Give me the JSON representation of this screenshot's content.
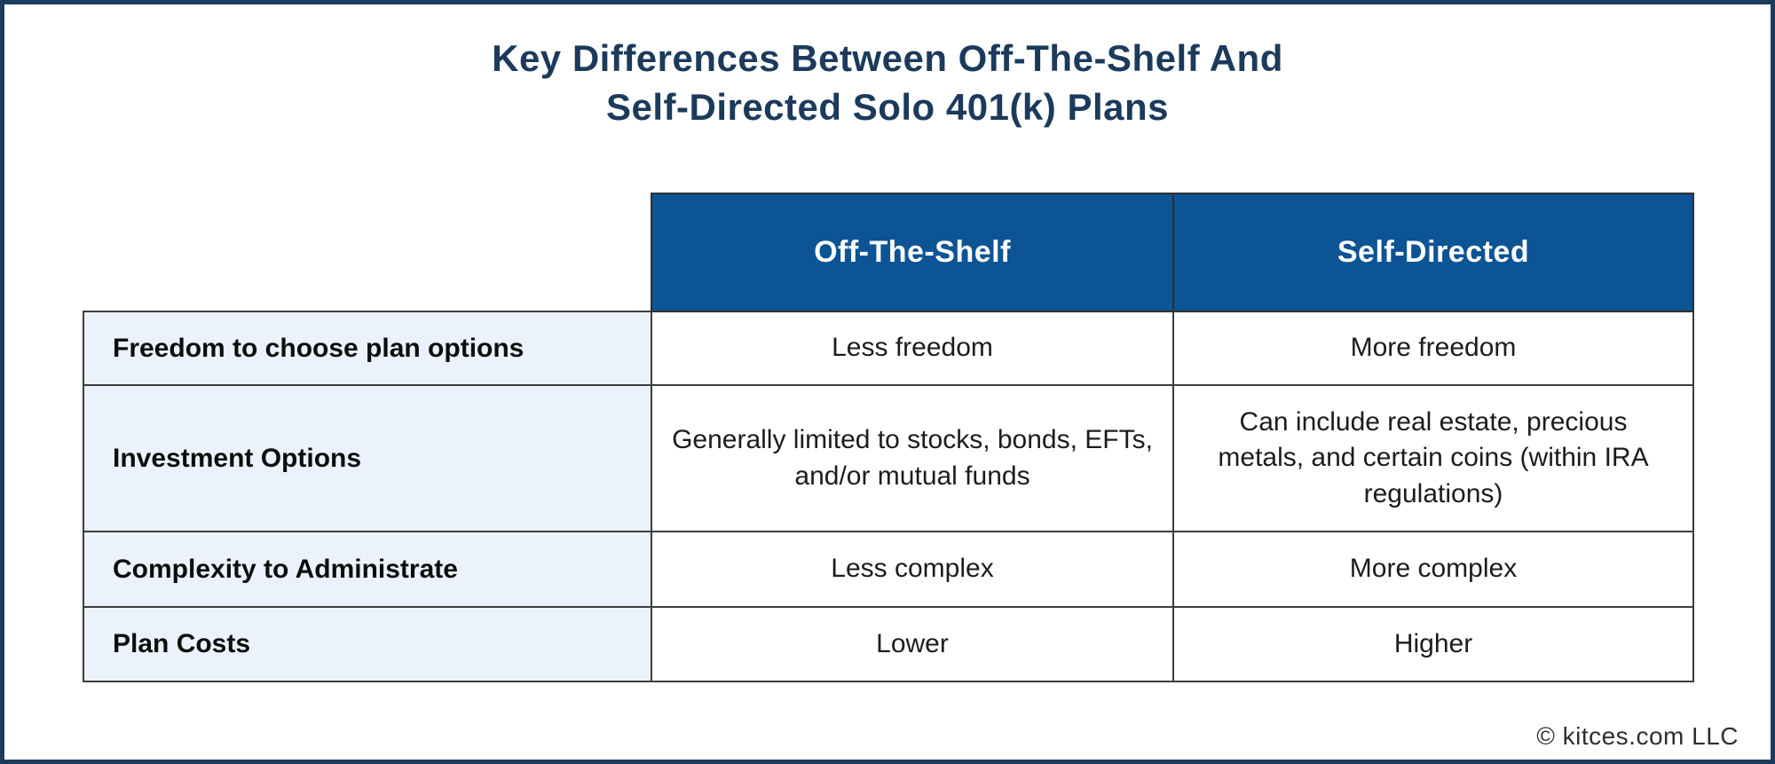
{
  "title": {
    "line1": "Key Differences Between Off-The-Shelf And",
    "line2": "Self-Directed Solo 401(k) Plans"
  },
  "table": {
    "column_headers": [
      "Off-The-Shelf",
      "Self-Directed"
    ],
    "rows": [
      {
        "label": "Freedom to choose plan options",
        "off_the_shelf": "Less freedom",
        "self_directed": "More freedom"
      },
      {
        "label": "Investment Options",
        "off_the_shelf": "Generally limited to stocks, bonds, EFTs, and/or mutual funds",
        "self_directed": "Can include real estate, precious metals, and certain coins (within IRA regulations)"
      },
      {
        "label": "Complexity to Administrate",
        "off_the_shelf": "Less complex",
        "self_directed": "More complex"
      },
      {
        "label": "Plan Costs",
        "off_the_shelf": "Lower",
        "self_directed": "Higher"
      }
    ]
  },
  "footer": {
    "copyright": "© kitces.com LLC"
  },
  "colors": {
    "header_bg": "#0d5494",
    "label_bg": "#ecf2fb",
    "title_text": "#1b3a5c",
    "outer_border": "#1c3a5c",
    "cell_border": "#3d3d3d"
  },
  "chart_data": {
    "type": "table",
    "title": "Key Differences Between Off-The-Shelf And Self-Directed Solo 401(k) Plans",
    "columns": [
      "",
      "Off-The-Shelf",
      "Self-Directed"
    ],
    "rows": [
      [
        "Freedom to choose plan options",
        "Less freedom",
        "More freedom"
      ],
      [
        "Investment Options",
        "Generally limited to stocks, bonds, EFTs, and/or mutual funds",
        "Can include real estate, precious metals, and certain coins (within IRA regulations)"
      ],
      [
        "Complexity to Administrate",
        "Less complex",
        "More complex"
      ],
      [
        "Plan Costs",
        "Lower",
        "Higher"
      ]
    ],
    "legend_position": "none",
    "grid": true
  }
}
